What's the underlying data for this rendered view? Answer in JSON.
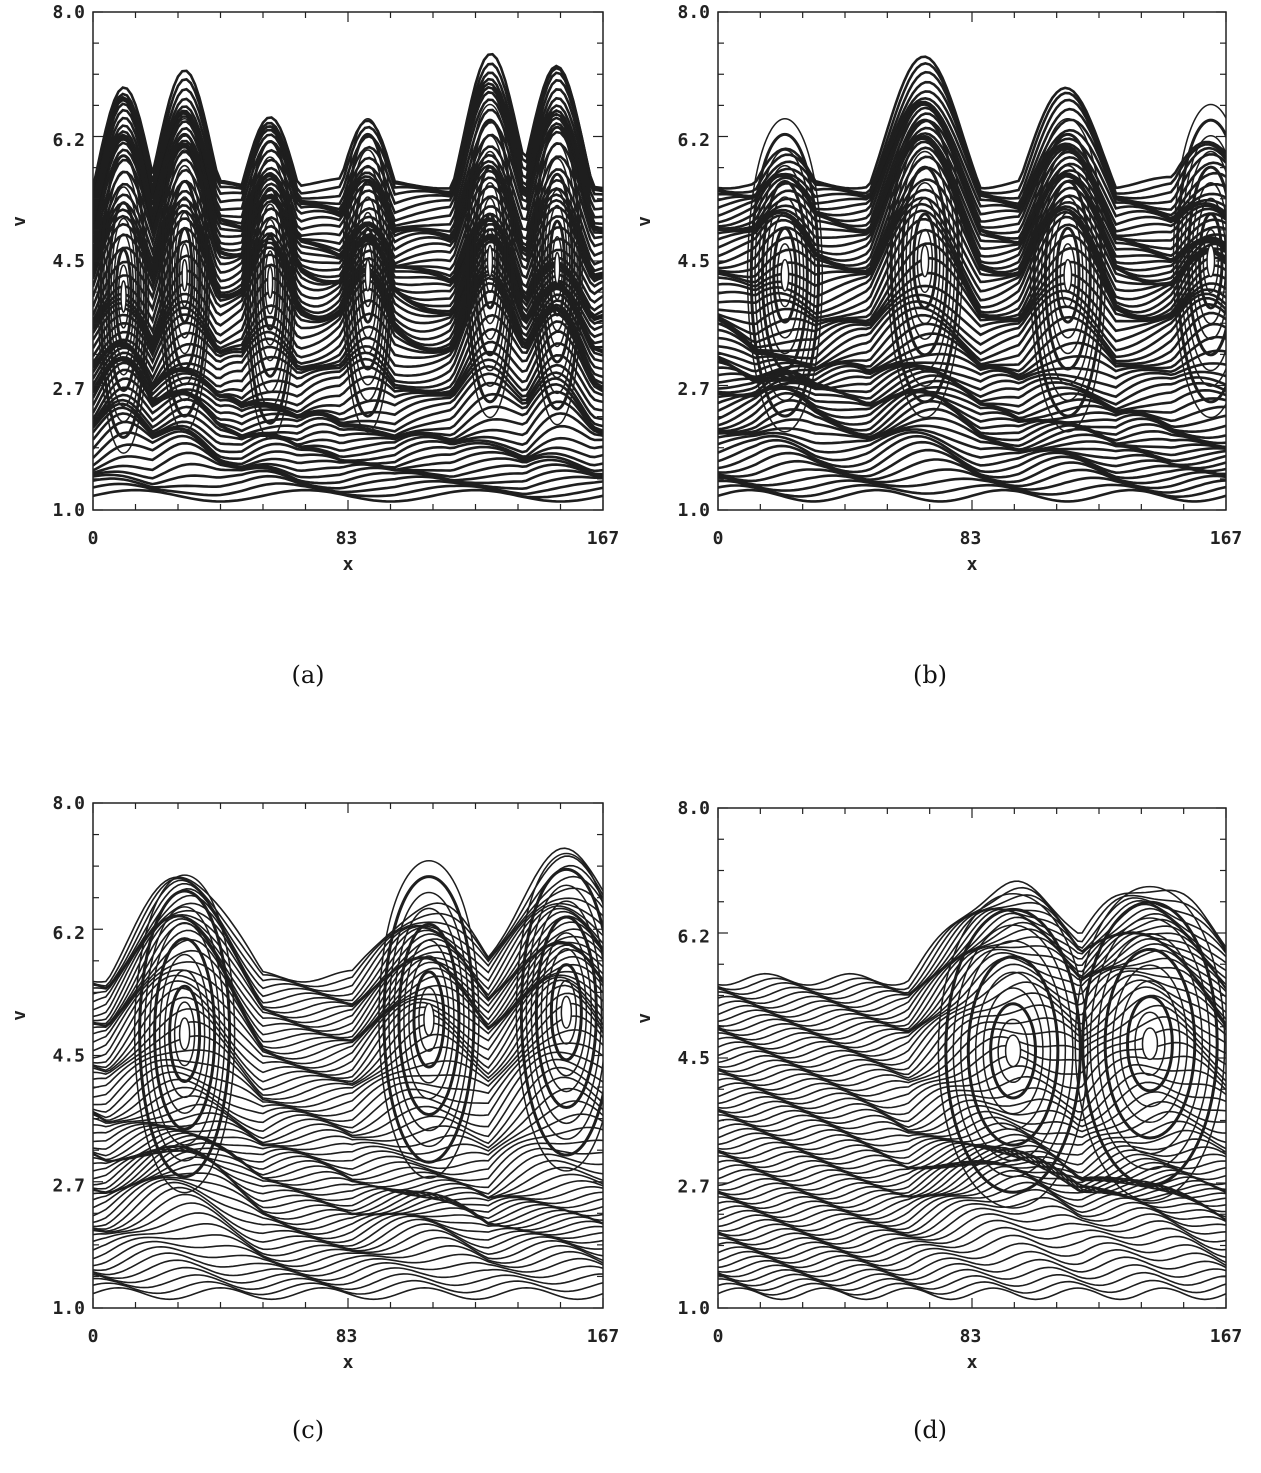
{
  "chart_data": [
    {
      "type": "heatmap",
      "panel": "(a)",
      "xlabel": "x",
      "ylabel": "v",
      "xlim": [
        0,
        167
      ],
      "ylim": [
        1.0,
        8.0
      ],
      "xticks": [
        "0",
        "83",
        "167"
      ],
      "yticks": [
        "1.0",
        "2.7",
        "4.5",
        "6.2",
        "8.0"
      ],
      "vortices": [
        {
          "x": 10,
          "v": 4.0
        },
        {
          "x": 30,
          "v": 4.3
        },
        {
          "x": 58,
          "v": 4.2
        },
        {
          "x": 90,
          "v": 4.3
        },
        {
          "x": 130,
          "v": 4.5
        },
        {
          "x": 152,
          "v": 4.4
        }
      ],
      "upper_edge_peaks": [
        7.0,
        7.1,
        6.6,
        6.4,
        7.4,
        7.2
      ]
    },
    {
      "type": "heatmap",
      "panel": "(b)",
      "xlabel": "x",
      "ylabel": "v",
      "xlim": [
        0,
        167
      ],
      "ylim": [
        1.0,
        8.0
      ],
      "xticks": [
        "0",
        "83",
        "167"
      ],
      "yticks": [
        "1.0",
        "2.7",
        "4.5",
        "6.2",
        "8.0"
      ],
      "vortices": [
        {
          "x": 22,
          "v": 4.3
        },
        {
          "x": 68,
          "v": 4.5
        },
        {
          "x": 115,
          "v": 4.3
        },
        {
          "x": 162,
          "v": 4.5
        }
      ],
      "upper_edge_peaks": [
        6.0,
        7.3,
        6.9,
        6.2
      ]
    },
    {
      "type": "heatmap",
      "panel": "(c)",
      "xlabel": "x",
      "ylabel": "v",
      "xlim": [
        0,
        167
      ],
      "ylim": [
        1.0,
        8.0
      ],
      "xticks": [
        "0",
        "83",
        "167"
      ],
      "yticks": [
        "1.0",
        "2.7",
        "4.5",
        "6.2",
        "8.0"
      ],
      "vortices": [
        {
          "x": 30,
          "v": 4.8
        },
        {
          "x": 110,
          "v": 5.0
        },
        {
          "x": 155,
          "v": 5.1
        }
      ],
      "upper_edge_peaks": [
        7.0,
        6.6,
        7.3
      ]
    },
    {
      "type": "heatmap",
      "panel": "(d)",
      "xlabel": "x",
      "ylabel": "v",
      "xlim": [
        0,
        167
      ],
      "ylim": [
        1.0,
        8.0
      ],
      "xticks": [
        "0",
        "83",
        "167"
      ],
      "yticks": [
        "1.0",
        "2.7",
        "4.5",
        "6.2",
        "8.0"
      ],
      "vortices": [
        {
          "x": 97,
          "v": 4.6
        },
        {
          "x": 142,
          "v": 4.7
        }
      ],
      "upper_edge_peaks": [
        6.9,
        6.9
      ]
    }
  ]
}
